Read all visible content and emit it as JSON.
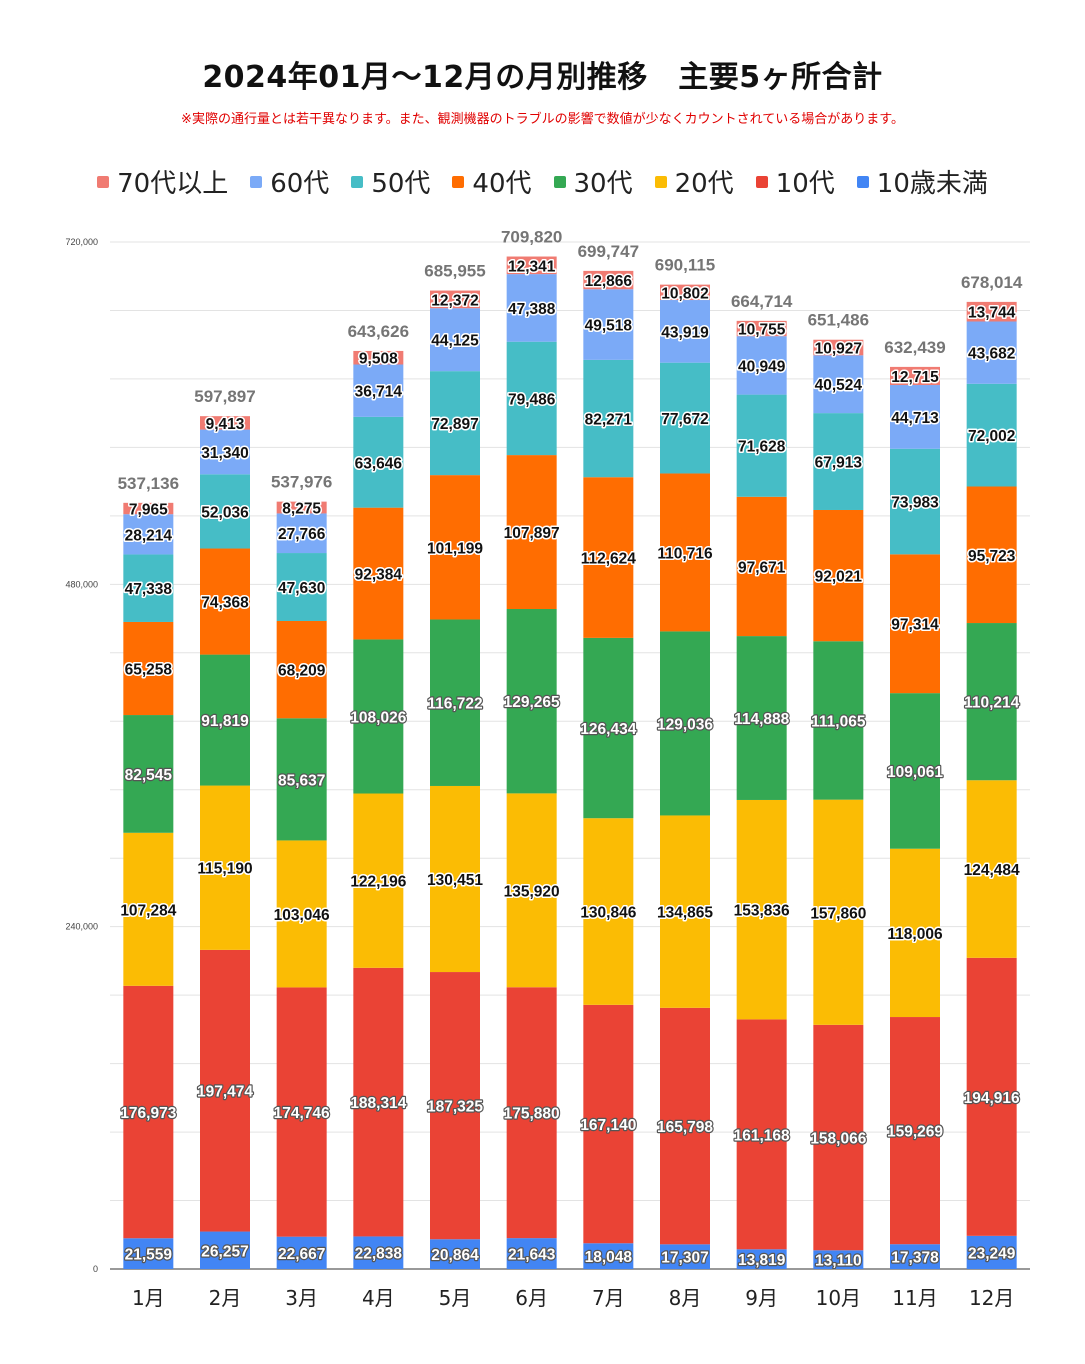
{
  "title": "2024年01月～12月の月別推移　主要5ヶ所合計",
  "subtitle": "※実際の通行量とは若干異なります。また、観測機器のトラブルの影響で数値が少なくカウントされている場合があります。",
  "chart_data": {
    "type": "bar",
    "stacked": true,
    "categories": [
      "1月",
      "2月",
      "3月",
      "4月",
      "5月",
      "6月",
      "7月",
      "8月",
      "9月",
      "10月",
      "11月",
      "12月"
    ],
    "ylim": [
      0,
      720000
    ],
    "yticks": [
      0,
      240000,
      480000,
      720000
    ],
    "ytick_labels": [
      "0",
      "240,000",
      "480,000",
      "720,000"
    ],
    "grid": true,
    "legend_position": "top",
    "series": [
      {
        "name": "10歳未満",
        "color": "#4285f4",
        "label_color": "#ffffff",
        "values": [
          21559,
          26257,
          22667,
          22838,
          20864,
          21643,
          18048,
          17307,
          13819,
          13110,
          17378,
          23249
        ]
      },
      {
        "name": "10代",
        "color": "#ea4335",
        "label_color": "#ffffff",
        "values": [
          176973,
          197474,
          174746,
          188314,
          187325,
          175880,
          167140,
          165798,
          161168,
          158066,
          159269,
          194916
        ]
      },
      {
        "name": "20代",
        "color": "#fbbc04",
        "label_color": "#111111",
        "values": [
          107284,
          115190,
          103046,
          122196,
          130451,
          135920,
          130846,
          134865,
          153836,
          157860,
          118006,
          124484
        ]
      },
      {
        "name": "30代",
        "color": "#34a853",
        "label_color": "#ffffff",
        "values": [
          82545,
          91819,
          85637,
          108026,
          116722,
          129265,
          126434,
          129036,
          114888,
          111065,
          109061,
          110214
        ]
      },
      {
        "name": "40代",
        "color": "#ff6d01",
        "label_color": "#111111",
        "values": [
          65258,
          74368,
          68209,
          92384,
          101199,
          107897,
          112624,
          110716,
          97671,
          92021,
          97314,
          95723
        ]
      },
      {
        "name": "50代",
        "color": "#46bdc6",
        "label_color": "#111111",
        "values": [
          47338,
          52036,
          47630,
          63646,
          72897,
          79486,
          82271,
          77672,
          71628,
          67913,
          73983,
          72002
        ]
      },
      {
        "name": "60代",
        "color": "#7baaf7",
        "label_color": "#111111",
        "values": [
          28214,
          31340,
          27766,
          36714,
          44125,
          47388,
          49518,
          43919,
          40949,
          40524,
          44713,
          43682
        ]
      },
      {
        "name": "70代以上",
        "color": "#f07b72",
        "label_color": "#111111",
        "values": [
          7965,
          9413,
          8275,
          9508,
          12372,
          12341,
          12866,
          10802,
          10755,
          10927,
          12715,
          13744
        ]
      }
    ],
    "totals": [
      537136,
      597897,
      537976,
      643626,
      685955,
      709820,
      699747,
      690115,
      664714,
      651486,
      632439,
      678014
    ],
    "total_label_color": "#757575"
  }
}
